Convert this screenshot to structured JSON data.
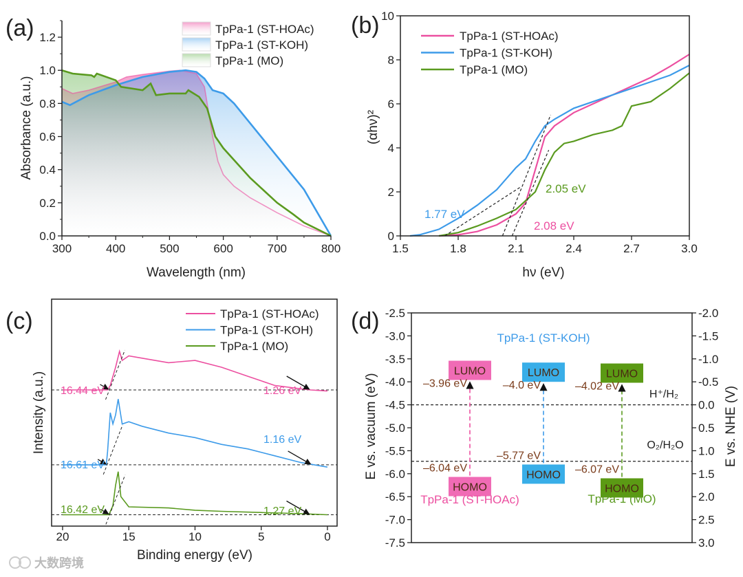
{
  "watermark": "大数跨境",
  "colors": {
    "hoac": "#ec4fa0",
    "koh": "#3d9be9",
    "mo": "#5a9a1f",
    "value_label": "#7a3b1a",
    "box_text": "#4a2a12"
  },
  "chart_data": [
    {
      "panel": "(a)",
      "type": "area",
      "xlabel": "Wavelength (nm)",
      "ylabel": "Absorbance (a.u.)",
      "xlim": [
        300,
        800
      ],
      "ylim": [
        0,
        1.3
      ],
      "xticks": [
        "300",
        "400",
        "500",
        "600",
        "700",
        "800"
      ],
      "yticks": [
        "0.0",
        "0.2",
        "0.4",
        "0.6",
        "0.8",
        "1.0",
        "1.2"
      ],
      "legend_placement": "top-right",
      "series": [
        {
          "name": "TpPa-1 (ST-HOAc)",
          "key": "hoac",
          "x": [
            300,
            320,
            350,
            400,
            420,
            450,
            500,
            520,
            550,
            565,
            575,
            580,
            590,
            600,
            620,
            650,
            700,
            750,
            800
          ],
          "y": [
            0.89,
            0.86,
            0.88,
            0.93,
            0.96,
            0.975,
            0.995,
            1.0,
            0.98,
            0.9,
            0.7,
            0.6,
            0.45,
            0.37,
            0.3,
            0.23,
            0.14,
            0.06,
            0.0
          ]
        },
        {
          "name": "TpPa-1 (ST-KOH)",
          "key": "koh",
          "x": [
            300,
            315,
            350,
            400,
            450,
            500,
            530,
            550,
            565,
            580,
            600,
            620,
            650,
            700,
            750,
            800
          ],
          "y": [
            0.81,
            0.79,
            0.85,
            0.91,
            0.96,
            0.99,
            1.0,
            0.99,
            0.95,
            0.88,
            0.86,
            0.8,
            0.68,
            0.48,
            0.28,
            0.0
          ]
        },
        {
          "name": "TpPa-1 (MO)",
          "key": "mo",
          "x": [
            300,
            320,
            355,
            360,
            365,
            400,
            410,
            450,
            465,
            475,
            500,
            530,
            535,
            555,
            570,
            585,
            600,
            650,
            700,
            730,
            750,
            800
          ],
          "y": [
            1.0,
            0.98,
            0.97,
            0.96,
            0.98,
            0.94,
            0.9,
            0.88,
            0.92,
            0.85,
            0.86,
            0.86,
            0.88,
            0.84,
            0.77,
            0.6,
            0.53,
            0.35,
            0.2,
            0.13,
            0.08,
            0.0
          ]
        }
      ]
    },
    {
      "panel": "(b)",
      "type": "line",
      "xlabel": "hν (eV)",
      "ylabel": "(αhν)²",
      "xlim": [
        1.5,
        3.0
      ],
      "ylim": [
        0,
        10
      ],
      "xticks": [
        "1.5",
        "1.8",
        "2.1",
        "2.4",
        "2.7",
        "3.0"
      ],
      "yticks": [
        "0",
        "2",
        "4",
        "6",
        "8",
        "10"
      ],
      "legend_placement": "top-left",
      "series": [
        {
          "name": "TpPa-1 (ST-HOAc)",
          "key": "hoac",
          "x": [
            1.7,
            1.8,
            1.9,
            2.0,
            2.1,
            2.15,
            2.2,
            2.25,
            2.3,
            2.4,
            2.5,
            2.6,
            2.7,
            2.8,
            2.9,
            3.0
          ],
          "y": [
            0,
            0.05,
            0.2,
            0.5,
            1.0,
            1.5,
            3.0,
            4.5,
            5.0,
            5.6,
            6.0,
            6.4,
            6.8,
            7.2,
            7.7,
            8.25
          ]
        },
        {
          "name": "TpPa-1 (ST-KOH)",
          "key": "koh",
          "x": [
            1.55,
            1.6,
            1.7,
            1.8,
            1.9,
            2.0,
            2.05,
            2.1,
            2.15,
            2.2,
            2.25,
            2.3,
            2.4,
            2.5,
            2.6,
            2.7,
            2.8,
            2.9,
            3.0
          ],
          "y": [
            0,
            0.05,
            0.3,
            0.8,
            1.4,
            2.1,
            2.6,
            3.1,
            3.5,
            4.3,
            5.0,
            5.3,
            5.8,
            6.1,
            6.4,
            6.7,
            7.0,
            7.3,
            7.75
          ]
        },
        {
          "name": "TpPa-1 (MO)",
          "key": "mo",
          "x": [
            1.7,
            1.8,
            1.9,
            2.0,
            2.1,
            2.2,
            2.25,
            2.3,
            2.35,
            2.4,
            2.5,
            2.6,
            2.65,
            2.7,
            2.75,
            2.8,
            2.9,
            3.0
          ],
          "y": [
            0,
            0.15,
            0.45,
            0.8,
            1.2,
            2.0,
            3.0,
            3.8,
            4.2,
            4.3,
            4.6,
            4.8,
            5.0,
            5.9,
            6.0,
            6.1,
            6.7,
            7.4
          ]
        }
      ],
      "annotations": [
        {
          "text": "1.77 eV",
          "key": "koh"
        },
        {
          "text": "2.05 eV",
          "key": "mo"
        },
        {
          "text": "2.08 eV",
          "key": "hoac"
        }
      ]
    },
    {
      "panel": "(c)",
      "type": "line",
      "xlabel": "Binding energy (eV)",
      "ylabel": "Intensity (a.u.)",
      "xlim": [
        20.83,
        -0.73
      ],
      "ylim": [
        0,
        10
      ],
      "xticks": [
        "20",
        "15",
        "10",
        "5",
        "0"
      ],
      "legend_placement": "top-right",
      "series": [
        {
          "name": "TpPa-1 (ST-HOAc)",
          "key": "hoac",
          "baseline": 6.0,
          "x": [
            20,
            16.6,
            16.4,
            16,
            15.7,
            15.5,
            15,
            14,
            12,
            10,
            8,
            6,
            5,
            4,
            2,
            1.26,
            0
          ],
          "y": [
            6.0,
            6.0,
            6.2,
            7.0,
            7.7,
            7.3,
            7.5,
            7.4,
            7.2,
            7.3,
            7.0,
            6.6,
            6.4,
            6.2,
            6.05,
            6.0,
            5.95
          ]
        },
        {
          "name": "TpPa-1 (ST-KOH)",
          "key": "koh",
          "baseline": 2.7,
          "x": [
            20,
            16.7,
            16.6,
            16.4,
            16.2,
            16,
            15.8,
            15.5,
            15,
            14,
            12,
            10,
            8,
            6,
            4,
            2,
            0
          ],
          "y": [
            2.7,
            2.7,
            3.3,
            5.0,
            4.5,
            4.9,
            5.6,
            4.5,
            4.6,
            4.4,
            4.1,
            3.9,
            3.6,
            3.4,
            3.1,
            2.8,
            2.6
          ]
        },
        {
          "name": "TpPa-1 (MO)",
          "key": "mo",
          "baseline": 0.5,
          "x": [
            20,
            16.5,
            16.2,
            16,
            15.8,
            15.6,
            15,
            12,
            10,
            8,
            5,
            2,
            0
          ],
          "y": [
            0.5,
            0.5,
            0.9,
            1.8,
            2.4,
            1.3,
            0.85,
            0.8,
            0.7,
            0.65,
            0.6,
            0.55,
            0.5
          ]
        }
      ],
      "annotations": [
        {
          "key": "hoac",
          "cutoff": "16.44 eV",
          "onset": "1.26 eV",
          "cutoff_x": 16.44,
          "onset_x": 1.26
        },
        {
          "key": "koh",
          "cutoff": "16.61 eV",
          "onset": "1.16 eV",
          "cutoff_x": 16.61,
          "onset_x": 1.16
        },
        {
          "key": "mo",
          "cutoff": "16.42 eV",
          "onset": "1.27 eV",
          "cutoff_x": 16.42,
          "onset_x": 1.27
        }
      ]
    },
    {
      "panel": "(d)",
      "type": "diagram",
      "ylabel_left": "E vs. vacuum (eV)",
      "ylabel_right": "E vs. NHE (V)",
      "ylim": [
        -7.5,
        -2.5
      ],
      "yticks_left": [
        "-2.5",
        "-3.0",
        "-3.5",
        "-4.0",
        "-4.5",
        "-5.0",
        "-5.5",
        "-6.0",
        "-6.5",
        "-7.0",
        "-7.5"
      ],
      "yticks_right": [
        "-2.0",
        "-1.5",
        "-1.0",
        "-0.5",
        "0.0",
        "0.5",
        "1.0",
        "1.5",
        "2.0",
        "2.5",
        "3.0"
      ],
      "reference_levels": [
        {
          "label": "H⁺/H₂",
          "energy": -4.5
        },
        {
          "label": "O₂/H₂O",
          "energy": -5.73
        }
      ],
      "materials": [
        {
          "name": "TpPa-1 (ST-HOAc)",
          "key": "hoac",
          "lumo": -3.96,
          "homo": -6.04,
          "lumo_label": "–3.96 eV",
          "homo_label": "–6.04 eV",
          "lumo_box": "LUMO",
          "homo_box": "HOMO"
        },
        {
          "name": "TpPa-1 (ST-KOH)",
          "key": "koh",
          "lumo": -4.0,
          "homo": -5.77,
          "lumo_label": "–4.0 eV",
          "homo_label": "–5.77 eV",
          "lumo_box": "LUMO",
          "homo_box": "HOMO"
        },
        {
          "name": "TpPa-1 (MO)",
          "key": "mo",
          "lumo": -4.02,
          "homo": -6.07,
          "lumo_label": "–4.02 eV",
          "homo_label": "–6.07 eV",
          "lumo_box": "LUMO",
          "homo_box": "HOMO"
        }
      ]
    }
  ]
}
